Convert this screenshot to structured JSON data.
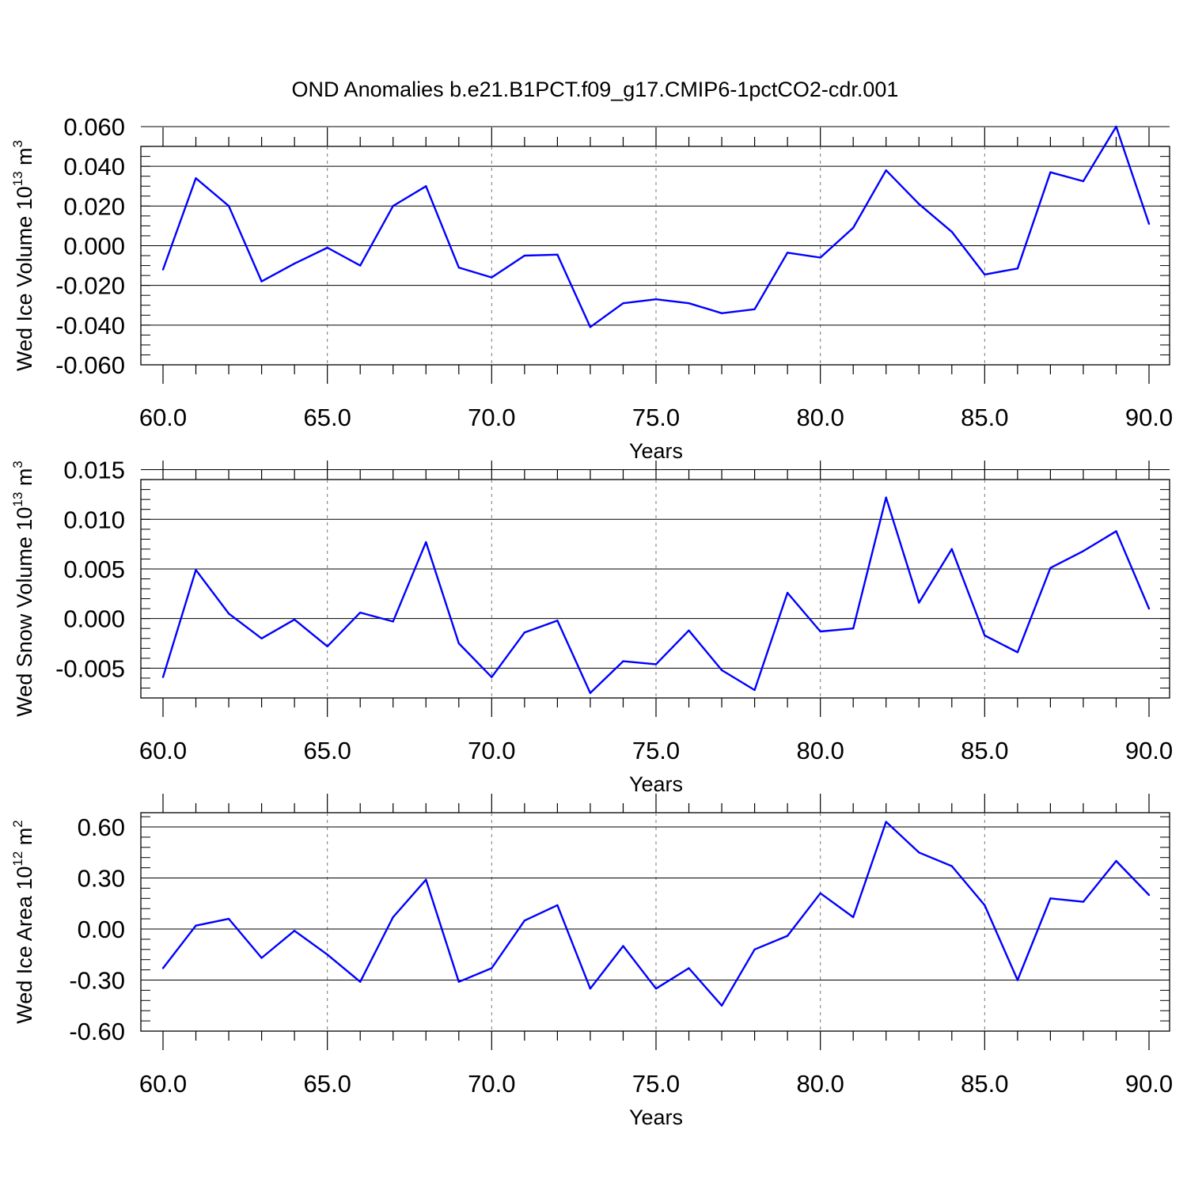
{
  "chart_data": [
    {
      "type": "line",
      "title": "OND Anomalies b.e21.B1PCT.f09_g17.CMIP6-1pctCO2-cdr.001",
      "ylabel_text": "Wed Ice Volume 10",
      "ylabel_exp": "13",
      "ylabel_unit": " m",
      "ylabel_unit_exp": "3",
      "xlabel": "Years",
      "xlim": [
        60,
        90
      ],
      "ylim": [
        -0.06,
        0.06
      ],
      "x_ticks": [
        "60.0",
        "65.0",
        "70.0",
        "75.0",
        "80.0",
        "85.0",
        "90.0"
      ],
      "y_ticks": [
        {
          "value": 0.06,
          "label": "0.060"
        },
        {
          "value": 0.04,
          "label": "0.040"
        },
        {
          "value": 0.02,
          "label": "0.020"
        },
        {
          "value": 0.0,
          "label": "0.000"
        },
        {
          "value": -0.02,
          "label": "-0.020"
        },
        {
          "value": -0.04,
          "label": "-0.040"
        },
        {
          "value": -0.06,
          "label": "-0.060"
        }
      ],
      "y_minor_step": 0.005,
      "line_color": "#0000ff",
      "x": [
        60,
        61,
        62,
        63,
        64,
        65,
        66,
        67,
        68,
        69,
        70,
        71,
        72,
        73,
        74,
        75,
        76,
        77,
        78,
        79,
        80,
        81,
        82,
        83,
        84,
        85,
        86,
        87,
        88,
        89,
        90
      ],
      "values": [
        -0.012,
        0.034,
        0.02,
        -0.018,
        -0.009,
        -0.001,
        -0.01,
        0.02,
        0.03,
        -0.011,
        -0.016,
        -0.005,
        -0.0045,
        -0.041,
        -0.029,
        -0.027,
        -0.029,
        -0.034,
        -0.032,
        -0.0035,
        -0.006,
        0.009,
        0.038,
        0.021,
        0.007,
        -0.0145,
        -0.0115,
        0.037,
        0.0325,
        0.06,
        0.011
      ]
    },
    {
      "type": "line",
      "ylabel_text": "Wed Snow Volume 10",
      "ylabel_exp": "13",
      "ylabel_unit": " m",
      "ylabel_unit_exp": "3",
      "xlabel": "Years",
      "xlim": [
        60,
        90
      ],
      "ylim": [
        -0.008,
        0.016
      ],
      "x_ticks": [
        "60.0",
        "65.0",
        "70.0",
        "75.0",
        "80.0",
        "85.0",
        "90.0"
      ],
      "y_ticks": [
        {
          "value": 0.015,
          "label": "0.015"
        },
        {
          "value": 0.01,
          "label": "0.010"
        },
        {
          "value": 0.005,
          "label": "0.005"
        },
        {
          "value": 0.0,
          "label": "0.000"
        },
        {
          "value": -0.005,
          "label": "-0.005"
        }
      ],
      "y_minor_step": 0.001,
      "line_color": "#0000ff",
      "x": [
        60,
        61,
        62,
        63,
        64,
        65,
        66,
        67,
        68,
        69,
        70,
        71,
        72,
        73,
        74,
        75,
        76,
        77,
        78,
        79,
        80,
        81,
        82,
        83,
        84,
        85,
        86,
        87,
        88,
        89,
        90
      ],
      "values": [
        -0.0059,
        0.0049,
        0.0005,
        -0.002,
        -0.0001,
        -0.0028,
        0.0006,
        -0.0003,
        0.0077,
        -0.0025,
        -0.0059,
        -0.0014,
        -0.0002,
        -0.0075,
        -0.0043,
        -0.0046,
        -0.0012,
        -0.0052,
        -0.0072,
        0.0026,
        -0.0013,
        -0.001,
        0.0122,
        0.0016,
        0.007,
        -0.0017,
        -0.0034,
        0.0051,
        0.0068,
        0.0088,
        0.001
      ]
    },
    {
      "type": "line",
      "ylabel_text": "Wed Ice Area 10",
      "ylabel_exp": "12",
      "ylabel_unit": " m",
      "ylabel_unit_exp": "2",
      "xlabel": "Years",
      "xlim": [
        60,
        90
      ],
      "ylim": [
        -0.6,
        0.8
      ],
      "x_ticks": [
        "60.0",
        "65.0",
        "70.0",
        "75.0",
        "80.0",
        "85.0",
        "90.0"
      ],
      "y_ticks": [
        {
          "value": 0.6,
          "label": "0.60"
        },
        {
          "value": 0.3,
          "label": "0.30"
        },
        {
          "value": 0.0,
          "label": "0.00"
        },
        {
          "value": -0.3,
          "label": "-0.30"
        },
        {
          "value": -0.6,
          "label": "-0.60"
        }
      ],
      "y_minor_step": 0.06,
      "line_color": "#0000ff",
      "x": [
        60,
        61,
        62,
        63,
        64,
        65,
        66,
        67,
        68,
        69,
        70,
        71,
        72,
        73,
        74,
        75,
        76,
        77,
        78,
        79,
        80,
        81,
        82,
        83,
        84,
        85,
        86,
        87,
        88,
        89,
        90
      ],
      "values": [
        -0.23,
        0.02,
        0.06,
        -0.17,
        -0.01,
        -0.15,
        -0.31,
        0.07,
        0.29,
        -0.31,
        -0.23,
        0.05,
        0.14,
        -0.35,
        -0.1,
        -0.35,
        -0.23,
        -0.45,
        -0.12,
        -0.04,
        0.21,
        0.07,
        0.63,
        0.45,
        0.37,
        0.14,
        -0.3,
        0.18,
        0.16,
        0.4,
        0.2
      ]
    }
  ]
}
